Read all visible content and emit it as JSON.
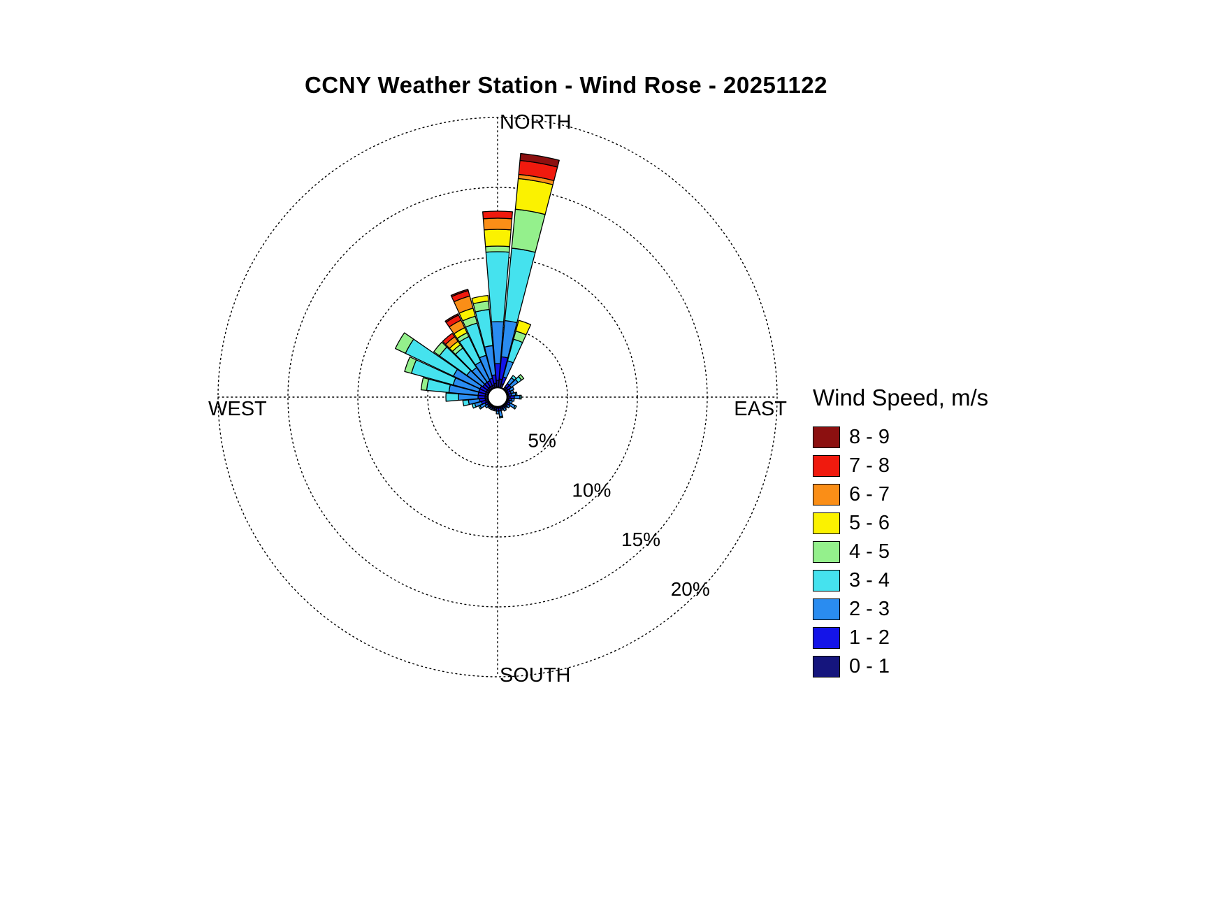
{
  "title": "CCNY Weather Station - Wind Rose - 20251122",
  "legend": {
    "title": "Wind Speed, m/s"
  },
  "chart_data": {
    "type": "wind_rose",
    "title": "CCNY Weather Station - Wind Rose - 20251122",
    "units": "percent frequency of wind direction, stacked by speed bin",
    "rings_percent": [
      5,
      10,
      15,
      20
    ],
    "ring_label_suffix": "%",
    "compass_labels": {
      "north": "NORTH",
      "east": "EAST",
      "south": "SOUTH",
      "west": "WEST"
    },
    "legend_title": "Wind Speed, m/s",
    "speed_bins_mps": [
      {
        "label": "0 - 1",
        "color": "#15157D"
      },
      {
        "label": "1 - 2",
        "color": "#1414E8"
      },
      {
        "label": "2 - 3",
        "color": "#2A8CF0"
      },
      {
        "label": "3 - 4",
        "color": "#45E2EE"
      },
      {
        "label": "4 - 5",
        "color": "#94F08C"
      },
      {
        "label": "5 - 6",
        "color": "#FBF200"
      },
      {
        "label": "6 - 7",
        "color": "#FA8E17"
      },
      {
        "label": "7 - 8",
        "color": "#F01A0E"
      },
      {
        "label": "8 - 9",
        "color": "#8C1010"
      }
    ],
    "directions": [
      {
        "center_deg": 0,
        "values": [
          0.5,
          1.2,
          3.0,
          5.0,
          0.4,
          1.2,
          0.8,
          0.5,
          0
        ]
      },
      {
        "center_deg": 10,
        "values": [
          0.6,
          1.6,
          2.6,
          5.2,
          2.8,
          2.2,
          0.3,
          1.0,
          0.5
        ]
      },
      {
        "center_deg": 20,
        "values": [
          0.3,
          0.5,
          1.2,
          1.6,
          0.6,
          0.8,
          0,
          0,
          0
        ]
      },
      {
        "center_deg": 30,
        "values": [
          0,
          0,
          0,
          0,
          0,
          0,
          0,
          0,
          0
        ]
      },
      {
        "center_deg": 40,
        "values": [
          0.2,
          0.3,
          0.5,
          0.2,
          0,
          0,
          0,
          0,
          0
        ]
      },
      {
        "center_deg": 50,
        "values": [
          0.2,
          0.3,
          0.6,
          0.3,
          0.2,
          0,
          0,
          0,
          0
        ]
      },
      {
        "center_deg": 60,
        "values": [
          0.1,
          0.2,
          0.3,
          0,
          0,
          0,
          0,
          0,
          0
        ]
      },
      {
        "center_deg": 70,
        "values": [
          0.1,
          0.2,
          0.2,
          0,
          0,
          0,
          0,
          0,
          0
        ]
      },
      {
        "center_deg": 80,
        "values": [
          0.1,
          0.2,
          0.3,
          0.1,
          0,
          0,
          0,
          0,
          0
        ]
      },
      {
        "center_deg": 90,
        "values": [
          0.2,
          0.3,
          0.4,
          0.1,
          0,
          0,
          0,
          0,
          0
        ]
      },
      {
        "center_deg": 100,
        "values": [
          0.1,
          0.2,
          0.2,
          0,
          0,
          0,
          0,
          0,
          0
        ]
      },
      {
        "center_deg": 110,
        "values": [
          0.1,
          0.1,
          0.2,
          0,
          0,
          0,
          0,
          0,
          0
        ]
      },
      {
        "center_deg": 120,
        "values": [
          0.1,
          0.2,
          0.4,
          0.1,
          0,
          0,
          0,
          0,
          0
        ]
      },
      {
        "center_deg": 130,
        "values": [
          0.1,
          0.1,
          0.2,
          0,
          0,
          0,
          0,
          0,
          0
        ]
      },
      {
        "center_deg": 140,
        "values": [
          0.1,
          0.1,
          0.1,
          0,
          0,
          0,
          0,
          0,
          0
        ]
      },
      {
        "center_deg": 150,
        "values": [
          0.1,
          0.1,
          0.2,
          0,
          0,
          0,
          0,
          0,
          0
        ]
      },
      {
        "center_deg": 160,
        "values": [
          0.1,
          0.1,
          0.1,
          0,
          0,
          0,
          0,
          0,
          0
        ]
      },
      {
        "center_deg": 170,
        "values": [
          0.1,
          0.2,
          0.4,
          0.1,
          0,
          0,
          0,
          0,
          0
        ]
      },
      {
        "center_deg": 180,
        "values": [
          0.1,
          0.2,
          0.2,
          0,
          0,
          0,
          0,
          0,
          0
        ]
      },
      {
        "center_deg": 190,
        "values": [
          0.1,
          0.1,
          0.1,
          0,
          0,
          0,
          0,
          0,
          0
        ]
      },
      {
        "center_deg": 200,
        "values": [
          0.1,
          0.1,
          0.1,
          0,
          0,
          0,
          0,
          0,
          0
        ]
      },
      {
        "center_deg": 210,
        "values": [
          0.1,
          0.1,
          0.1,
          0,
          0,
          0,
          0,
          0,
          0
        ]
      },
      {
        "center_deg": 220,
        "values": [
          0.1,
          0.1,
          0.1,
          0,
          0,
          0,
          0,
          0,
          0
        ]
      },
      {
        "center_deg": 230,
        "values": [
          0.1,
          0.1,
          0.2,
          0,
          0,
          0,
          0,
          0,
          0
        ]
      },
      {
        "center_deg": 240,
        "values": [
          0.1,
          0.2,
          0.4,
          0.1,
          0,
          0,
          0,
          0,
          0
        ]
      },
      {
        "center_deg": 250,
        "values": [
          0.2,
          0.3,
          0.5,
          0.2,
          0,
          0,
          0,
          0,
          0
        ]
      },
      {
        "center_deg": 260,
        "values": [
          0.2,
          0.4,
          0.8,
          0.4,
          0,
          0,
          0,
          0,
          0
        ]
      },
      {
        "center_deg": 270,
        "values": [
          0.2,
          0.5,
          1.4,
          0.9,
          0,
          0,
          0,
          0,
          0
        ]
      },
      {
        "center_deg": 280,
        "values": [
          0.2,
          0.5,
          2.1,
          1.6,
          0.4,
          0,
          0,
          0,
          0
        ]
      },
      {
        "center_deg": 290,
        "values": [
          0.2,
          0.5,
          1.9,
          3.1,
          0.5,
          0,
          0,
          0,
          0
        ]
      },
      {
        "center_deg": 300,
        "values": [
          0.2,
          0.5,
          2.1,
          3.8,
          0.8,
          0,
          0,
          0,
          0
        ]
      },
      {
        "center_deg": 310,
        "values": [
          0.2,
          0.4,
          1.4,
          2.4,
          0.5,
          0,
          0,
          0,
          0
        ]
      },
      {
        "center_deg": 320,
        "values": [
          0.2,
          0.4,
          1.3,
          1.7,
          0.3,
          0.3,
          0.4,
          0.3,
          0
        ]
      },
      {
        "center_deg": 330,
        "values": [
          0.2,
          0.4,
          1.5,
          2.0,
          0.3,
          0.4,
          0.6,
          0.4,
          0.1
        ]
      },
      {
        "center_deg": 340,
        "values": [
          0.2,
          0.5,
          1.7,
          2.4,
          0.5,
          0.6,
          0.9,
          0.4,
          0.1
        ]
      },
      {
        "center_deg": 350,
        "values": [
          0.3,
          0.6,
          2.1,
          2.6,
          0.6,
          0.4,
          0,
          0,
          0
        ]
      }
    ]
  }
}
